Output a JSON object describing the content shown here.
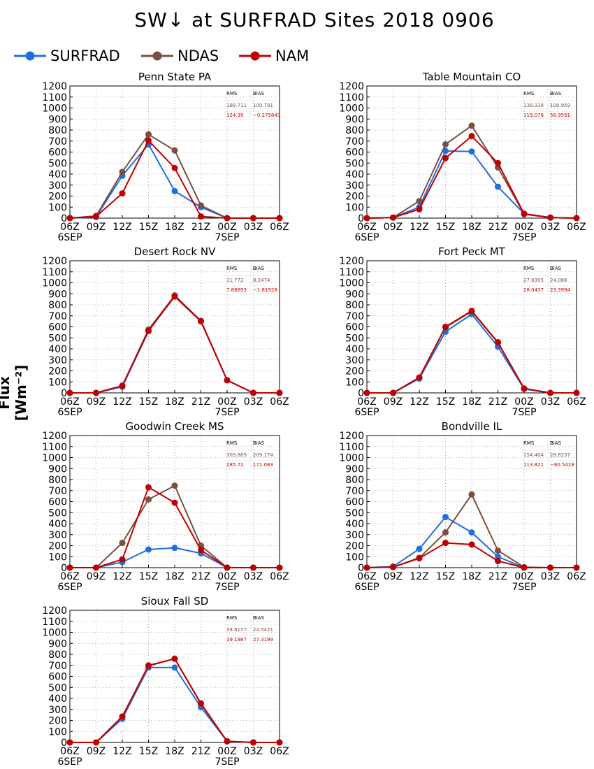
{
  "title": "SW↓ at SURFRAD Sites      2018  0906",
  "legend": [
    {
      "name": "SURFRAD",
      "color": "#1f6fe0"
    },
    {
      "name": "NDAS",
      "color": "#7a5040"
    },
    {
      "name": "NAM",
      "color": "#c00000"
    }
  ],
  "ylabel": "Flux [Wm⁻²]",
  "chart_data": [
    {
      "type": "line",
      "title": "Penn State PA",
      "x": [
        "06Z",
        "09Z",
        "12Z",
        "15Z",
        "18Z",
        "21Z",
        "00Z",
        "03Z",
        "06Z"
      ],
      "xsub": [
        "6SEP",
        "",
        "",
        "",
        "",
        "",
        "7SEP",
        "",
        ""
      ],
      "ylim": [
        0,
        1200
      ],
      "yticks": [
        0,
        100,
        200,
        300,
        400,
        500,
        600,
        700,
        800,
        900,
        1000,
        1100,
        1200
      ],
      "grid": true,
      "stats": {
        "headers": [
          "RMS",
          "BIAS"
        ],
        "rows": [
          [
            "188.711",
            "100.791"
          ],
          [
            "124.39",
            "−0.275843"
          ]
        ]
      },
      "series": [
        {
          "name": "SURFRAD",
          "values": [
            0,
            10,
            385,
            670,
            245,
            100,
            0,
            0,
            0
          ]
        },
        {
          "name": "NDAS",
          "values": [
            0,
            20,
            420,
            760,
            615,
            115,
            0,
            0,
            0
          ]
        },
        {
          "name": "NAM",
          "values": [
            0,
            15,
            225,
            705,
            455,
            15,
            0,
            0,
            0
          ]
        }
      ]
    },
    {
      "type": "line",
      "title": "Table Mountain CO",
      "x": [
        "06Z",
        "09Z",
        "12Z",
        "15Z",
        "18Z",
        "21Z",
        "00Z",
        "03Z",
        "06Z"
      ],
      "xsub": [
        "6SEP",
        "",
        "",
        "",
        "",
        "",
        "7SEP",
        "",
        ""
      ],
      "ylim": [
        0,
        1200
      ],
      "yticks": [
        0,
        100,
        200,
        300,
        400,
        500,
        600,
        700,
        800,
        900,
        1000,
        1100,
        1200
      ],
      "grid": true,
      "stats": {
        "headers": [
          "RMS",
          "BIAS"
        ],
        "rows": [
          [
            "138.338",
            "108.959"
          ],
          [
            "119.078",
            "58.9591"
          ]
        ]
      },
      "series": [
        {
          "name": "SURFRAD",
          "values": [
            0,
            5,
            100,
            610,
            605,
            285,
            40,
            5,
            0
          ]
        },
        {
          "name": "NDAS",
          "values": [
            0,
            5,
            155,
            670,
            840,
            460,
            35,
            5,
            0
          ]
        },
        {
          "name": "NAM",
          "values": [
            0,
            5,
            80,
            545,
            745,
            500,
            40,
            5,
            0
          ]
        }
      ]
    },
    {
      "type": "line",
      "title": "Desert Rock NV",
      "x": [
        "06Z",
        "09Z",
        "12Z",
        "15Z",
        "18Z",
        "21Z",
        "00Z",
        "03Z",
        "06Z"
      ],
      "xsub": [
        "6SEP",
        "",
        "",
        "",
        "",
        "",
        "7SEP",
        "",
        ""
      ],
      "ylim": [
        0,
        1200
      ],
      "yticks": [
        0,
        100,
        200,
        300,
        400,
        500,
        600,
        700,
        800,
        900,
        1000,
        1100,
        1200
      ],
      "grid": true,
      "stats": {
        "headers": [
          "RMS",
          "BIAS"
        ],
        "rows": [
          [
            "11.772",
            "8.2474"
          ],
          [
            "7.88893",
            "−1.81928"
          ]
        ]
      },
      "series": [
        {
          "name": "SURFRAD",
          "values": [
            0,
            0,
            55,
            560,
            885,
            650,
            115,
            0,
            0
          ]
        },
        {
          "name": "NDAS",
          "values": [
            0,
            0,
            65,
            575,
            885,
            655,
            115,
            0,
            0
          ]
        },
        {
          "name": "NAM",
          "values": [
            0,
            0,
            65,
            565,
            875,
            650,
            115,
            0,
            0
          ]
        }
      ]
    },
    {
      "type": "line",
      "title": "Fort Peck MT",
      "x": [
        "06Z",
        "09Z",
        "12Z",
        "15Z",
        "18Z",
        "21Z",
        "00Z",
        "03Z",
        "06Z"
      ],
      "xsub": [
        "6SEP",
        "",
        "",
        "",
        "",
        "",
        "7SEP",
        "",
        ""
      ],
      "ylim": [
        0,
        1200
      ],
      "yticks": [
        0,
        100,
        200,
        300,
        400,
        500,
        600,
        700,
        800,
        900,
        1000,
        1100,
        1200
      ],
      "grid": true,
      "stats": {
        "headers": [
          "RMS",
          "BIAS"
        ],
        "rows": [
          [
            "27.8305",
            "24.088"
          ],
          [
            "28.0437",
            "23.3994"
          ]
        ]
      },
      "series": [
        {
          "name": "SURFRAD",
          "values": [
            0,
            0,
            130,
            555,
            715,
            420,
            35,
            0,
            0
          ]
        },
        {
          "name": "NDAS",
          "values": [
            0,
            0,
            140,
            595,
            740,
            455,
            40,
            0,
            0
          ]
        },
        {
          "name": "NAM",
          "values": [
            0,
            0,
            140,
            600,
            745,
            460,
            40,
            0,
            0
          ]
        }
      ]
    },
    {
      "type": "line",
      "title": "Goodwin Creek MS",
      "x": [
        "06Z",
        "09Z",
        "12Z",
        "15Z",
        "18Z",
        "21Z",
        "00Z",
        "03Z",
        "06Z"
      ],
      "xsub": [
        "6SEP",
        "",
        "",
        "",
        "",
        "",
        "7SEP",
        "",
        ""
      ],
      "ylim": [
        0,
        1200
      ],
      "yticks": [
        0,
        100,
        200,
        300,
        400,
        500,
        600,
        700,
        800,
        900,
        1000,
        1100,
        1200
      ],
      "grid": true,
      "stats": {
        "headers": [
          "RMS",
          "BIAS"
        ],
        "rows": [
          [
            "303.889",
            "209.174"
          ],
          [
            "285.72",
            "171.083"
          ]
        ]
      },
      "series": [
        {
          "name": "SURFRAD",
          "values": [
            0,
            0,
            50,
            165,
            180,
            130,
            0,
            0,
            0
          ]
        },
        {
          "name": "NDAS",
          "values": [
            0,
            0,
            225,
            620,
            745,
            200,
            0,
            0,
            0
          ]
        },
        {
          "name": "NAM",
          "values": [
            0,
            0,
            75,
            730,
            590,
            160,
            0,
            0,
            0
          ]
        }
      ]
    },
    {
      "type": "line",
      "title": "Bondville IL",
      "x": [
        "06Z",
        "09Z",
        "12Z",
        "15Z",
        "18Z",
        "21Z",
        "00Z",
        "03Z",
        "06Z"
      ],
      "xsub": [
        "6SEP",
        "",
        "",
        "",
        "",
        "",
        "7SEP",
        "",
        ""
      ],
      "ylim": [
        0,
        1200
      ],
      "yticks": [
        0,
        100,
        200,
        300,
        400,
        500,
        600,
        700,
        800,
        900,
        1000,
        1100,
        1200
      ],
      "grid": true,
      "stats": {
        "headers": [
          "RMS",
          "BIAS"
        ],
        "rows": [
          [
            "154.404",
            "28.8237"
          ],
          [
            "113.821",
            "−80.5428"
          ]
        ]
      },
      "series": [
        {
          "name": "SURFRAD",
          "values": [
            0,
            10,
            170,
            460,
            320,
            100,
            0,
            0,
            0
          ]
        },
        {
          "name": "NDAS",
          "values": [
            0,
            5,
            90,
            320,
            665,
            155,
            5,
            0,
            0
          ]
        },
        {
          "name": "NAM",
          "values": [
            0,
            5,
            85,
            225,
            210,
            60,
            0,
            0,
            0
          ]
        }
      ]
    },
    {
      "type": "line",
      "title": "Sioux Fall SD",
      "x": [
        "06Z",
        "09Z",
        "12Z",
        "15Z",
        "18Z",
        "21Z",
        "00Z",
        "03Z",
        "06Z"
      ],
      "xsub": [
        "6SEP",
        "",
        "",
        "",
        "",
        "",
        "7SEP",
        "",
        ""
      ],
      "ylim": [
        0,
        1200
      ],
      "yticks": [
        0,
        100,
        200,
        300,
        400,
        500,
        600,
        700,
        800,
        900,
        1000,
        1100,
        1200
      ],
      "grid": true,
      "stats": {
        "headers": [
          "RMS",
          "BIAS"
        ],
        "rows": [
          [
            "38.8157",
            "24.5421"
          ],
          [
            "39.1987",
            "27.3199"
          ]
        ]
      },
      "series": [
        {
          "name": "SURFRAD",
          "values": [
            0,
            0,
            215,
            680,
            680,
            320,
            10,
            0,
            0
          ]
        },
        {
          "name": "NDAS",
          "values": [
            0,
            0,
            235,
            695,
            760,
            350,
            10,
            0,
            0
          ]
        },
        {
          "name": "NAM",
          "values": [
            0,
            0,
            235,
            700,
            760,
            355,
            10,
            0,
            0
          ]
        }
      ]
    }
  ]
}
